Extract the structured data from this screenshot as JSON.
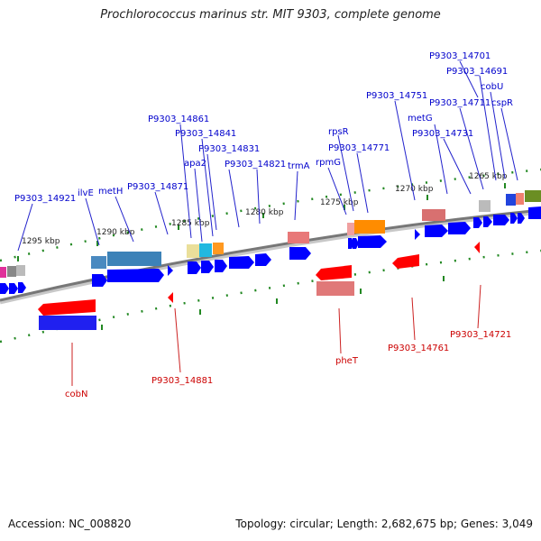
{
  "title": "Prochlorococcus marinus str. MIT 9303, complete genome",
  "footer": {
    "accession": "Accession: NC_008820",
    "summary": "Topology: circular; Length: 2,682,675 bp; Genes: 3,049"
  },
  "colors": {
    "forward_label": "#0000cc",
    "reverse_label": "#cc0000",
    "forward_gene": "#0000ff",
    "reverse_gene": "#ff0000",
    "tick": "#228822",
    "backbone": "#777777"
  },
  "scale_labels": [
    "1295 kbp",
    "1290 kbp",
    "1285 kbp",
    "1280 kbp",
    "1275 kbp",
    "1270 kbp",
    "1265 kbp"
  ],
  "forward_labels": [
    "P9303_14921",
    "ilvE",
    "metH",
    "P9303_14871",
    "P9303_14861",
    "P9303_14841",
    "apa2",
    "P9303_14831",
    "P9303_14821",
    "trmA",
    "rpsR",
    "rpmG",
    "P9303_14771",
    "P9303_14751",
    "metG",
    "P9303_14731",
    "P9303_14711",
    "P9303_14701",
    "P9303_14691",
    "cobU",
    "cspR"
  ],
  "reverse_labels": [
    "cobN",
    "P9303_14881",
    "pheT",
    "P9303_14761",
    "P9303_14721"
  ]
}
